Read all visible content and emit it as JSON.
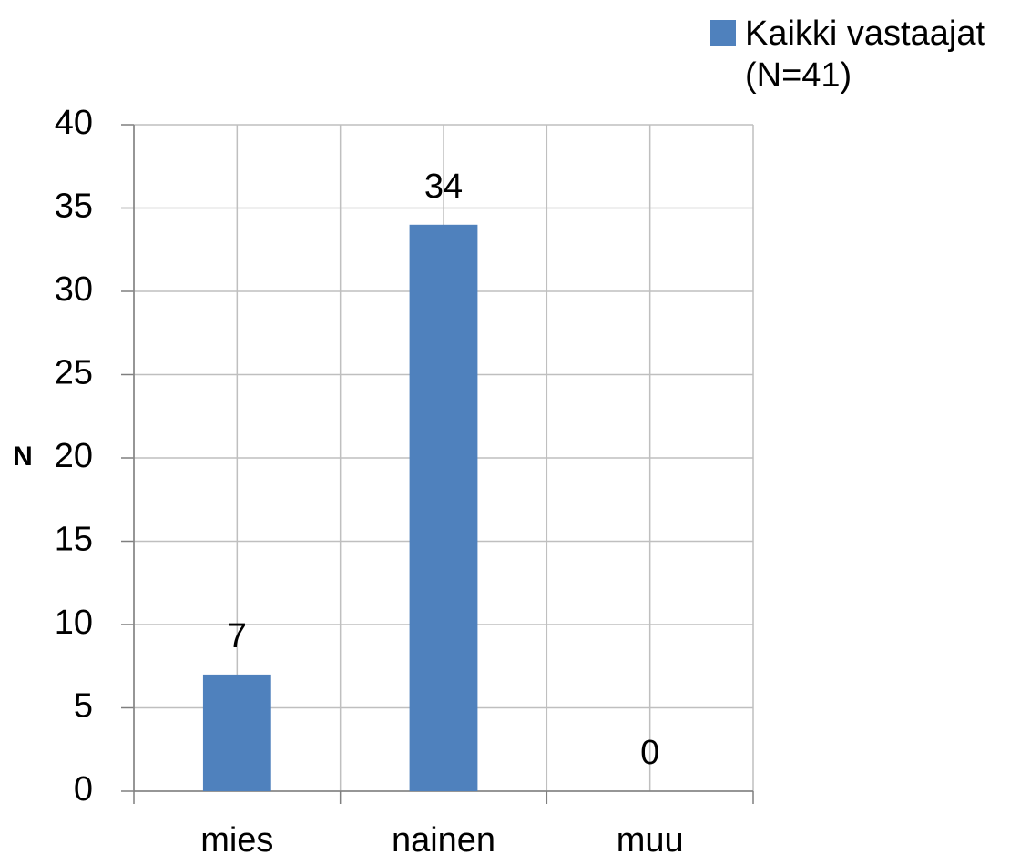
{
  "chart_data": {
    "type": "bar",
    "y_label": "N",
    "categories": [
      "mies",
      "nainen",
      "muu"
    ],
    "series": [
      {
        "name": "Kaikki vastaajat (N=41)",
        "color": "#4f81bd",
        "values": [
          7,
          34,
          0
        ]
      }
    ],
    "ylim": [
      0,
      40
    ],
    "yticks": [
      0,
      5,
      10,
      15,
      20,
      25,
      30,
      35,
      40
    ],
    "grid": true,
    "legend": "top-right"
  }
}
